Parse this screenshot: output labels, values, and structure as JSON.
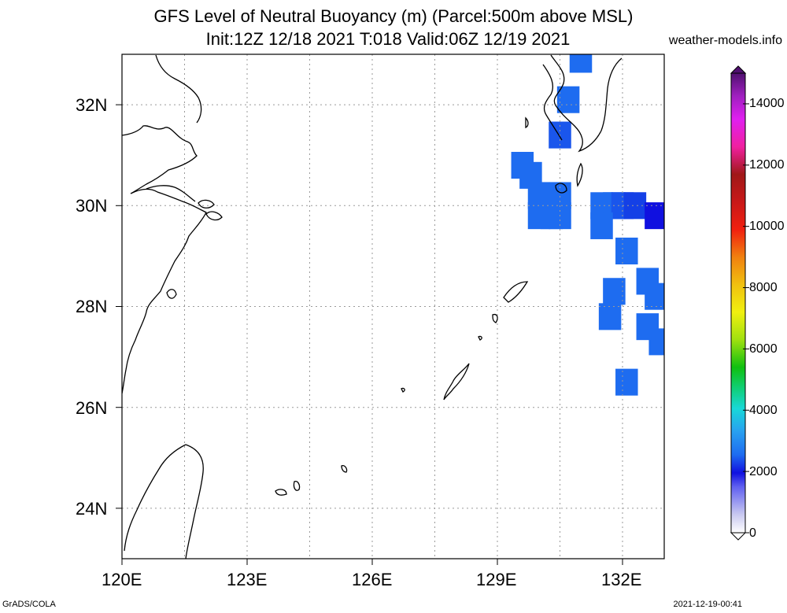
{
  "header": {
    "title_line1": "GFS Level of Neutral Buoyancy (m) (Parcel:500m above MSL)",
    "title_line2": "Init:12Z 12/18 2021 T:018 Valid:06Z 12/19 2021",
    "site": "weather-models.info"
  },
  "map": {
    "lon_range": [
      120,
      133
    ],
    "lat_range": [
      23,
      33
    ],
    "lat_ticks": [
      "32N",
      "30N",
      "28N",
      "26N",
      "24N"
    ],
    "lon_ticks": [
      "120E",
      "123E",
      "126E",
      "129E",
      "132E"
    ],
    "grid": true,
    "coastline_color": "#000000",
    "grid_color": "#9a9a9a"
  },
  "colorbar": {
    "labels": [
      "14000",
      "12000",
      "10000",
      "8000",
      "6000",
      "4000",
      "2000",
      "0"
    ],
    "range": [
      0,
      15000
    ]
  },
  "chart_data": {
    "type": "heatmap",
    "title": "GFS Level of Neutral Buoyancy (m) (Parcel:500m above MSL)",
    "units": "m",
    "xlabel": "",
    "ylabel": "",
    "xlim": [
      120,
      133
    ],
    "ylim": [
      23,
      33
    ],
    "cells": [
      {
        "lon": 131.0,
        "lat": 32.9,
        "value": 2000
      },
      {
        "lon": 130.7,
        "lat": 32.1,
        "value": 2000
      },
      {
        "lon": 130.5,
        "lat": 31.4,
        "value": 1700
      },
      {
        "lon": 129.6,
        "lat": 30.8,
        "value": 2000
      },
      {
        "lon": 129.8,
        "lat": 30.6,
        "value": 2000
      },
      {
        "lon": 130.0,
        "lat": 30.2,
        "value": 2000
      },
      {
        "lon": 130.3,
        "lat": 30.2,
        "value": 2000
      },
      {
        "lon": 130.5,
        "lat": 30.2,
        "value": 2000
      },
      {
        "lon": 130.0,
        "lat": 29.8,
        "value": 2000
      },
      {
        "lon": 130.3,
        "lat": 29.8,
        "value": 2000
      },
      {
        "lon": 130.5,
        "lat": 29.8,
        "value": 2000
      },
      {
        "lon": 131.5,
        "lat": 30.0,
        "value": 2000
      },
      {
        "lon": 131.8,
        "lat": 30.0,
        "value": 2000
      },
      {
        "lon": 132.0,
        "lat": 30.0,
        "value": 1800
      },
      {
        "lon": 132.3,
        "lat": 30.0,
        "value": 1500
      },
      {
        "lon": 132.8,
        "lat": 29.8,
        "value": 1200
      },
      {
        "lon": 131.5,
        "lat": 29.6,
        "value": 2000
      },
      {
        "lon": 132.1,
        "lat": 29.1,
        "value": 2000
      },
      {
        "lon": 132.6,
        "lat": 28.5,
        "value": 2000
      },
      {
        "lon": 131.8,
        "lat": 28.3,
        "value": 2000
      },
      {
        "lon": 132.8,
        "lat": 28.2,
        "value": 2000
      },
      {
        "lon": 131.7,
        "lat": 27.8,
        "value": 2000
      },
      {
        "lon": 132.6,
        "lat": 27.6,
        "value": 2000
      },
      {
        "lon": 132.9,
        "lat": 27.3,
        "value": 2000
      },
      {
        "lon": 132.1,
        "lat": 26.5,
        "value": 2000
      }
    ]
  }
}
